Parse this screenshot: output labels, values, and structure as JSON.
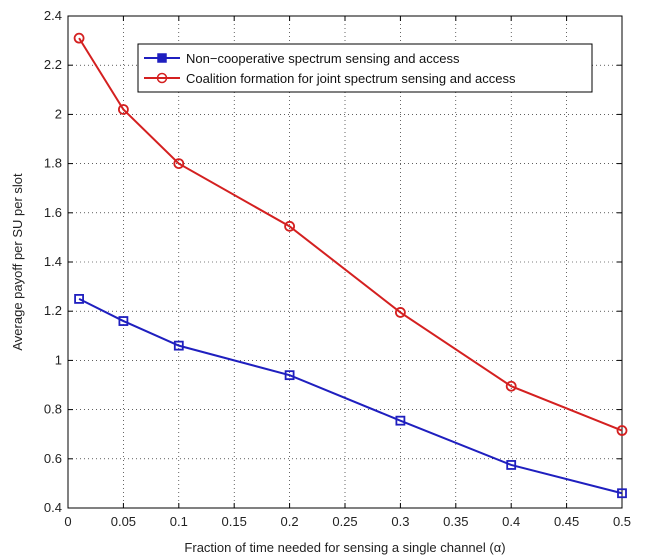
{
  "chart_data": {
    "type": "line",
    "xlabel": "Fraction of time needed for sensing a single channel (α)",
    "ylabel": "Average payoff per SU per slot",
    "xlim": [
      0,
      0.5
    ],
    "ylim": [
      0.4,
      2.4
    ],
    "xticks": [
      "0",
      "0.05",
      "0.1",
      "0.15",
      "0.2",
      "0.25",
      "0.3",
      "0.35",
      "0.4",
      "0.45",
      "0.5"
    ],
    "yticks": [
      "0.4",
      "0.6",
      "0.8",
      "1",
      "1.2",
      "1.4",
      "1.6",
      "1.8",
      "2",
      "2.2",
      "2.4"
    ],
    "grid": true,
    "legend_position": "top-right",
    "series": [
      {
        "name": "Non−cooperative spectrum sensing and access",
        "color": "#1f1fbf",
        "marker": "square",
        "x": [
          0.01,
          0.05,
          0.1,
          0.2,
          0.3,
          0.4,
          0.5
        ],
        "y": [
          1.25,
          1.16,
          1.06,
          0.94,
          0.755,
          0.575,
          0.46
        ]
      },
      {
        "name": "Coalition formation for joint spectrum sensing and access",
        "color": "#d42020",
        "marker": "circle",
        "x": [
          0.01,
          0.05,
          0.1,
          0.2,
          0.3,
          0.4,
          0.5
        ],
        "y": [
          2.31,
          2.02,
          1.8,
          1.545,
          1.195,
          0.895,
          0.715
        ]
      }
    ]
  }
}
